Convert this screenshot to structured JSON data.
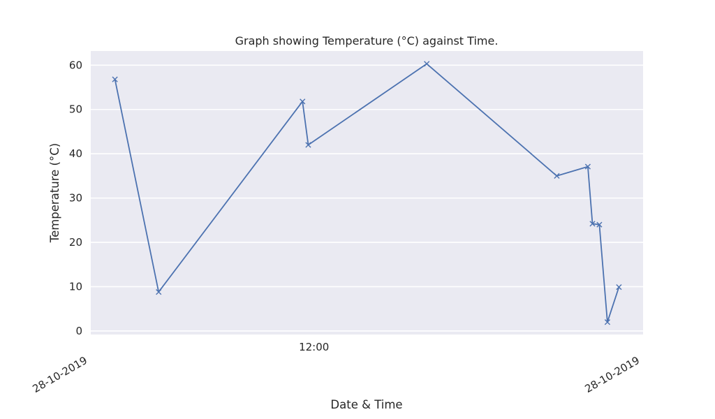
{
  "chart_data": {
    "type": "line",
    "title": "Graph showing Temperature (°C) against Time.",
    "xlabel": "Date & Time",
    "ylabel": "Temperature (°C)",
    "xlim": [
      0,
      24
    ],
    "ylim": [
      -0.8,
      63.2
    ],
    "y_ticks": [
      0,
      10,
      20,
      30,
      40,
      50,
      60
    ],
    "x_ticks": [
      {
        "x": 0,
        "label": "28-10-2019",
        "rotated": true
      },
      {
        "x": 9.7,
        "label": "12:00",
        "rotated": false
      },
      {
        "x": 24,
        "label": "28-10-2019",
        "rotated": true
      }
    ],
    "grid": true,
    "legend": "none",
    "marker": "x",
    "color": "#4c72b0",
    "background": "#eaeaf2",
    "series": [
      {
        "x": [
          1.05,
          2.95,
          9.2,
          9.45,
          14.6,
          20.25,
          21.6,
          21.8,
          22.1,
          22.45,
          22.95
        ],
        "values": [
          56.8,
          8.8,
          51.8,
          42.0,
          60.3,
          35.0,
          37.1,
          24.2,
          24.0,
          2.0,
          9.9
        ]
      }
    ]
  }
}
